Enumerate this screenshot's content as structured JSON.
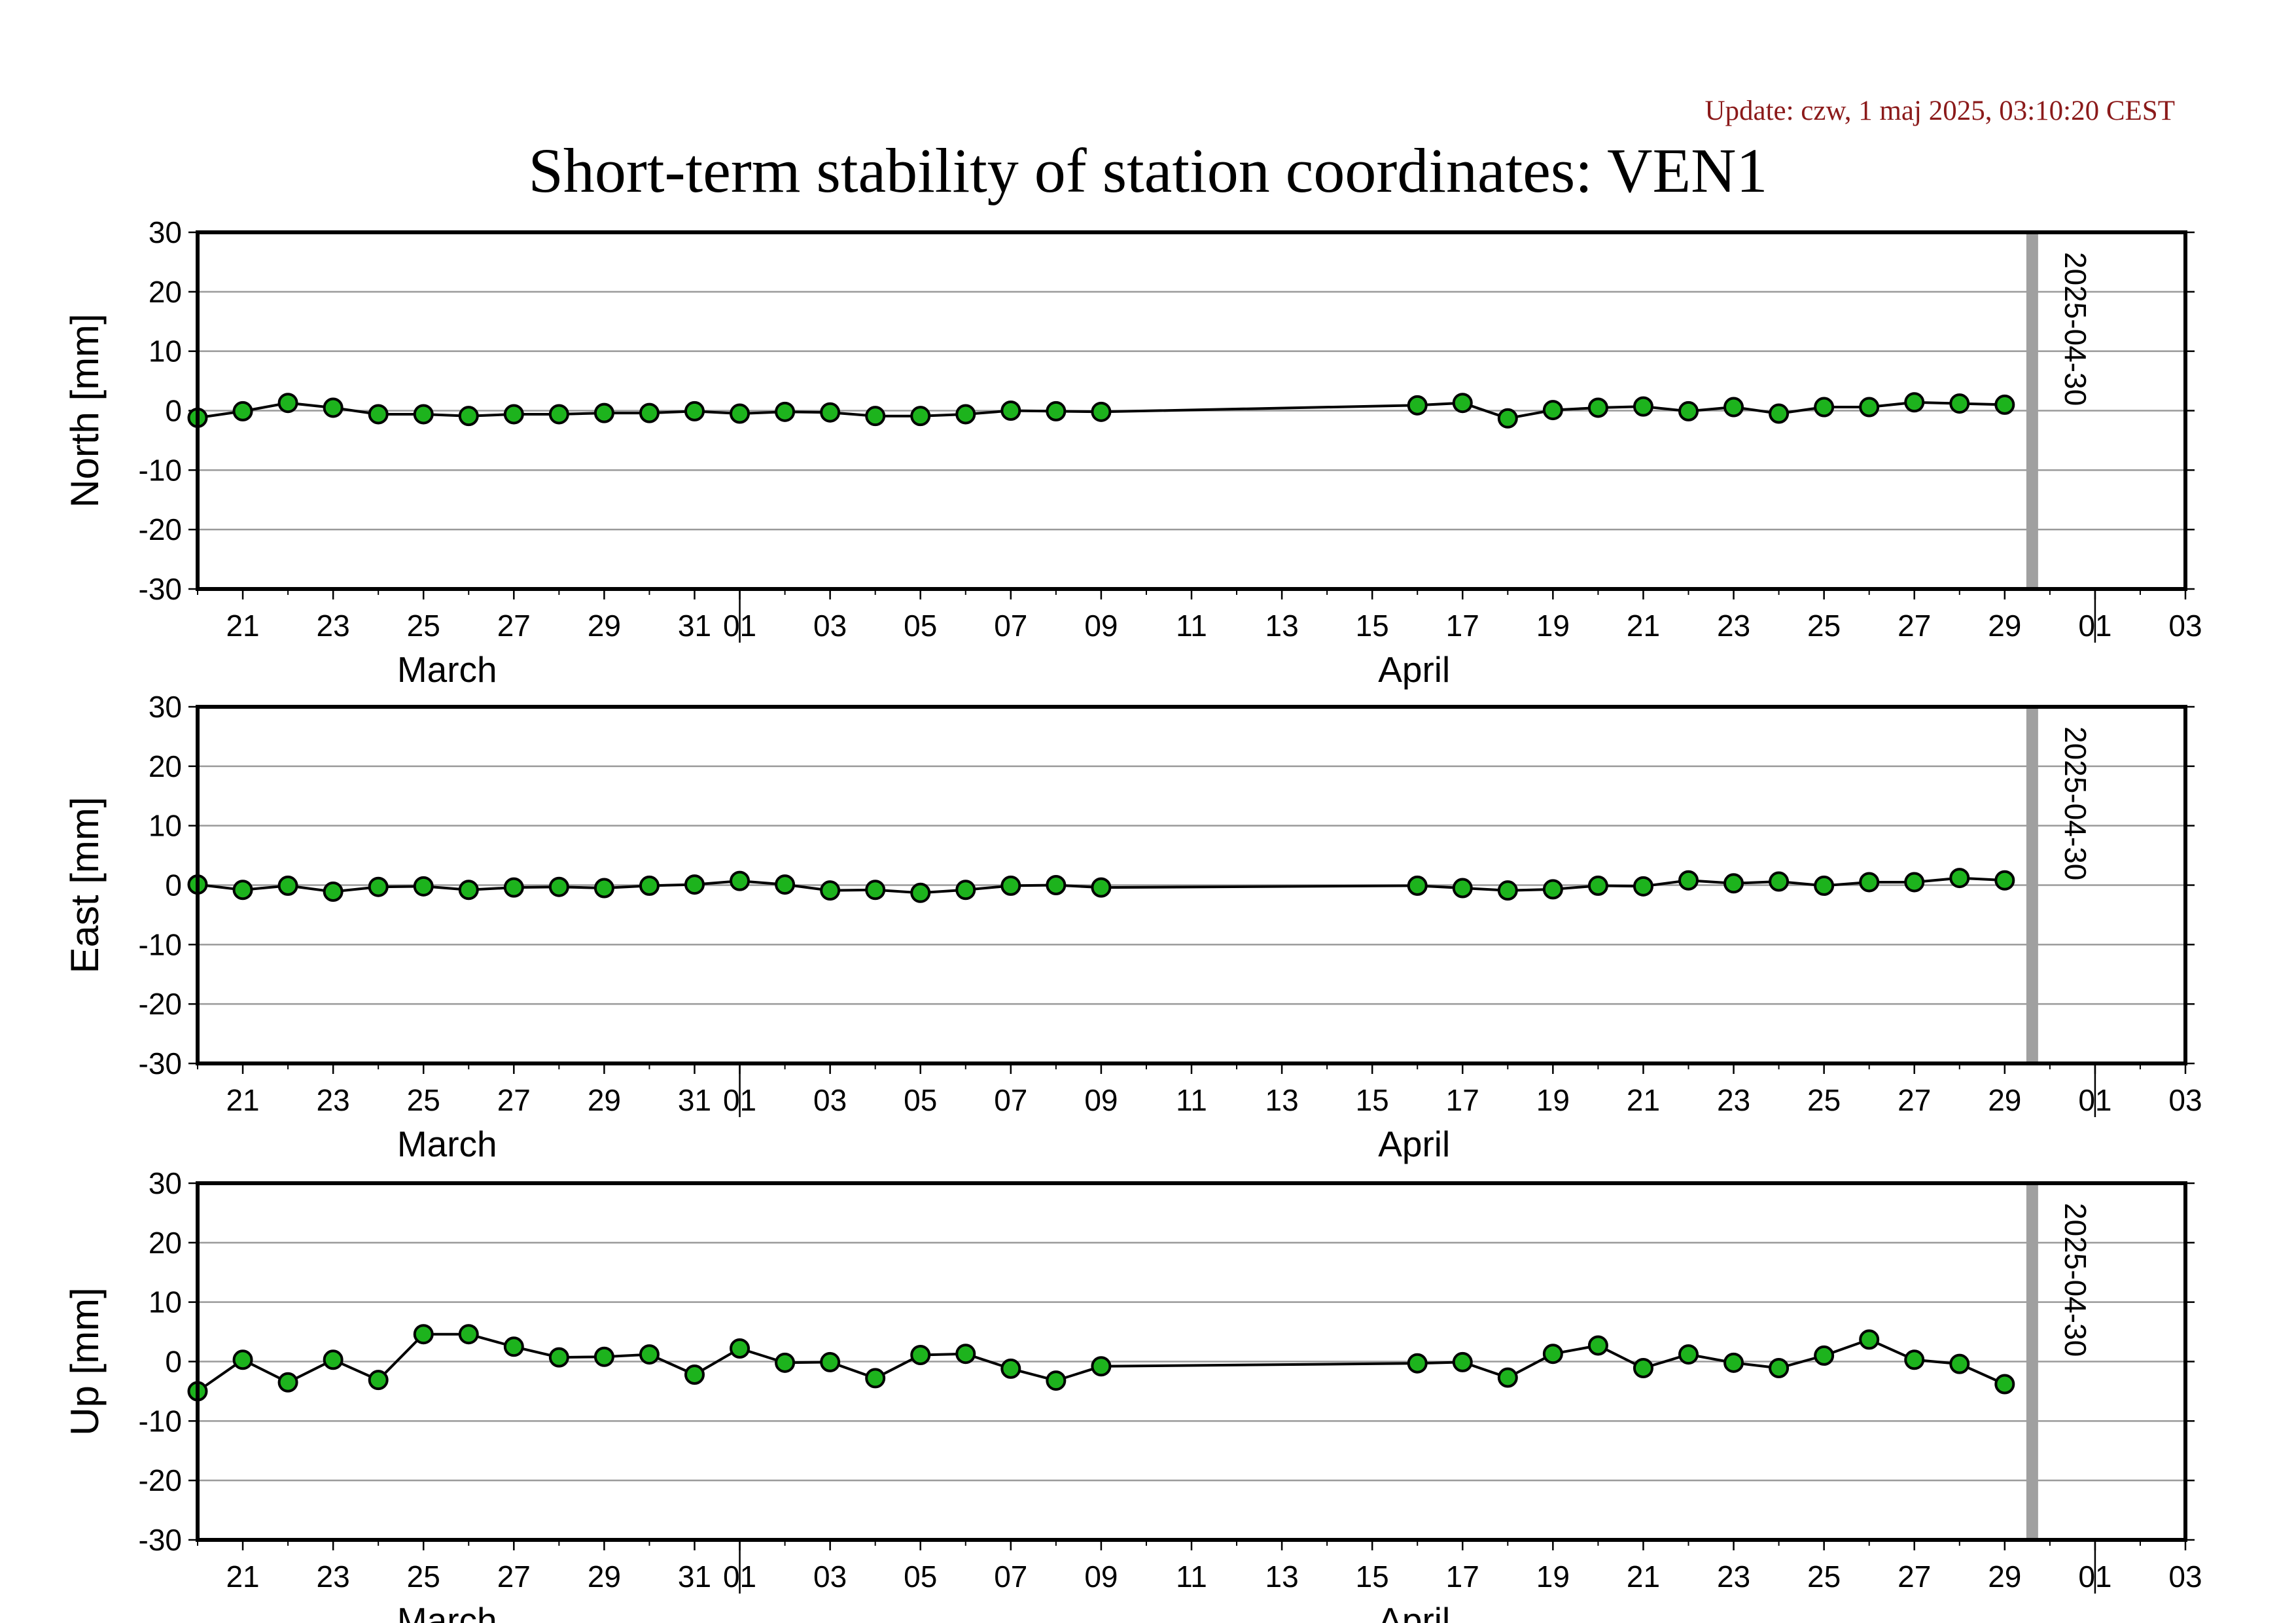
{
  "update_text": "Update: czw, 1 maj 2025, 03:10:20 CEST",
  "title": "Short-term stability of station coordinates: VEN1",
  "colors": {
    "marker_fill": "#1db31d",
    "marker_stroke": "#000000",
    "line": "#000000",
    "grid": "#9a9a9a",
    "date_marker": "#a0a0a0",
    "update_text": "#8b1a1a"
  },
  "chart_data": [
    {
      "type": "line",
      "ylabel": "North [mm]",
      "ylim": [
        -30,
        30
      ],
      "yticks": [
        -30,
        -20,
        -10,
        0,
        10,
        20,
        30
      ],
      "xlim": [
        "2025-03-20",
        "2025-05-03"
      ],
      "grid": true,
      "x_tick_labels": [
        "21",
        "23",
        "25",
        "27",
        "29",
        "31",
        "01",
        "03",
        "05",
        "07",
        "09",
        "11",
        "13",
        "15",
        "17",
        "19",
        "21",
        "23",
        "25",
        "27",
        "29",
        "01",
        "03"
      ],
      "month_labels": [
        "March",
        "April"
      ],
      "date_marker": "2025-04-30",
      "x": [
        "2025-03-20",
        "2025-03-21",
        "2025-03-22",
        "2025-03-23",
        "2025-03-24",
        "2025-03-25",
        "2025-03-26",
        "2025-03-27",
        "2025-03-28",
        "2025-03-29",
        "2025-03-30",
        "2025-03-31",
        "2025-04-01",
        "2025-04-02",
        "2025-04-03",
        "2025-04-04",
        "2025-04-05",
        "2025-04-06",
        "2025-04-07",
        "2025-04-08",
        "2025-04-09",
        "2025-04-16",
        "2025-04-17",
        "2025-04-18",
        "2025-04-19",
        "2025-04-20",
        "2025-04-21",
        "2025-04-22",
        "2025-04-23",
        "2025-04-24",
        "2025-04-25",
        "2025-04-26",
        "2025-04-27",
        "2025-04-28",
        "2025-04-29"
      ],
      "values": [
        -1.2,
        -0.1,
        1.3,
        0.5,
        -0.6,
        -0.6,
        -0.9,
        -0.6,
        -0.6,
        -0.4,
        -0.4,
        -0.1,
        -0.5,
        -0.2,
        -0.3,
        -0.9,
        -0.9,
        -0.6,
        0.0,
        -0.1,
        -0.2,
        0.9,
        1.3,
        -1.3,
        0.1,
        0.5,
        0.7,
        -0.1,
        0.6,
        -0.5,
        0.6,
        0.6,
        1.4,
        1.2,
        1.0
      ]
    },
    {
      "type": "line",
      "ylabel": "East [mm]",
      "ylim": [
        -30,
        30
      ],
      "yticks": [
        -30,
        -20,
        -10,
        0,
        10,
        20,
        30
      ],
      "xlim": [
        "2025-03-20",
        "2025-05-03"
      ],
      "grid": true,
      "x_tick_labels": [
        "21",
        "23",
        "25",
        "27",
        "29",
        "31",
        "01",
        "03",
        "05",
        "07",
        "09",
        "11",
        "13",
        "15",
        "17",
        "19",
        "21",
        "23",
        "25",
        "27",
        "29",
        "01",
        "03"
      ],
      "month_labels": [
        "March",
        "April"
      ],
      "date_marker": "2025-04-30",
      "x": [
        "2025-03-20",
        "2025-03-21",
        "2025-03-22",
        "2025-03-23",
        "2025-03-24",
        "2025-03-25",
        "2025-03-26",
        "2025-03-27",
        "2025-03-28",
        "2025-03-29",
        "2025-03-30",
        "2025-03-31",
        "2025-04-01",
        "2025-04-02",
        "2025-04-03",
        "2025-04-04",
        "2025-04-05",
        "2025-04-06",
        "2025-04-07",
        "2025-04-08",
        "2025-04-09",
        "2025-04-16",
        "2025-04-17",
        "2025-04-18",
        "2025-04-19",
        "2025-04-20",
        "2025-04-21",
        "2025-04-22",
        "2025-04-23",
        "2025-04-24",
        "2025-04-25",
        "2025-04-26",
        "2025-04-27",
        "2025-04-28",
        "2025-04-29"
      ],
      "values": [
        0.1,
        -0.8,
        -0.1,
        -1.1,
        -0.3,
        -0.2,
        -0.8,
        -0.4,
        -0.3,
        -0.5,
        -0.1,
        0.1,
        0.7,
        0.1,
        -0.9,
        -0.8,
        -1.3,
        -0.8,
        -0.1,
        0.0,
        -0.4,
        -0.1,
        -0.5,
        -0.9,
        -0.7,
        -0.1,
        -0.2,
        0.8,
        0.3,
        0.6,
        -0.1,
        0.5,
        0.5,
        1.2,
        0.8
      ]
    },
    {
      "type": "line",
      "ylabel": "Up [mm]",
      "ylim": [
        -30,
        30
      ],
      "yticks": [
        -30,
        -20,
        -10,
        0,
        10,
        20,
        30
      ],
      "xlim": [
        "2025-03-20",
        "2025-05-03"
      ],
      "grid": true,
      "x_tick_labels": [
        "21",
        "23",
        "25",
        "27",
        "29",
        "31",
        "01",
        "03",
        "05",
        "07",
        "09",
        "11",
        "13",
        "15",
        "17",
        "19",
        "21",
        "23",
        "25",
        "27",
        "29",
        "01",
        "03"
      ],
      "month_labels": [
        "March",
        "April"
      ],
      "date_marker": "2025-04-30",
      "x": [
        "2025-03-20",
        "2025-03-21",
        "2025-03-22",
        "2025-03-23",
        "2025-03-24",
        "2025-03-25",
        "2025-03-26",
        "2025-03-27",
        "2025-03-28",
        "2025-03-29",
        "2025-03-30",
        "2025-03-31",
        "2025-04-01",
        "2025-04-02",
        "2025-04-03",
        "2025-04-04",
        "2025-04-05",
        "2025-04-06",
        "2025-04-07",
        "2025-04-08",
        "2025-04-09",
        "2025-04-16",
        "2025-04-17",
        "2025-04-18",
        "2025-04-19",
        "2025-04-20",
        "2025-04-21",
        "2025-04-22",
        "2025-04-23",
        "2025-04-24",
        "2025-04-25",
        "2025-04-26",
        "2025-04-27",
        "2025-04-28",
        "2025-04-29"
      ],
      "values": [
        -5.0,
        0.3,
        -3.5,
        0.3,
        -3.1,
        4.6,
        4.6,
        2.5,
        0.7,
        0.8,
        1.2,
        -2.2,
        2.2,
        -0.2,
        -0.1,
        -2.8,
        1.1,
        1.3,
        -1.2,
        -3.2,
        -0.8,
        -0.3,
        -0.1,
        -2.7,
        1.3,
        2.7,
        -1.1,
        1.2,
        -0.2,
        -1.1,
        1.0,
        3.7,
        0.3,
        -0.4,
        -3.8
      ]
    }
  ]
}
